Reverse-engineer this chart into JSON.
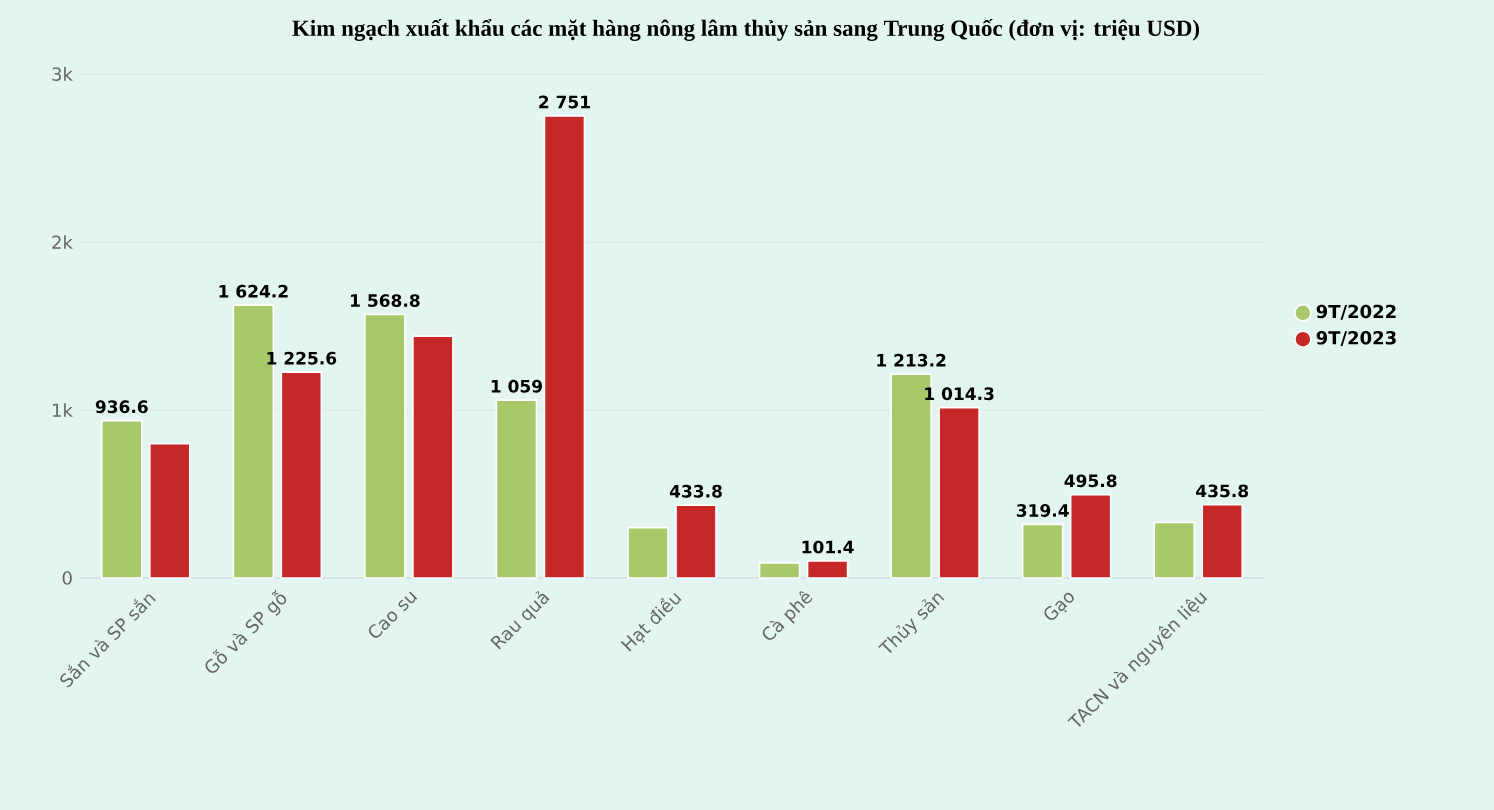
{
  "chart_data": {
    "type": "bar",
    "title": "Kim ngạch xuất khẩu các mặt hàng nông lâm thủy sản sang Trung Quốc (đơn vị: triệu USD)",
    "categories": [
      "Sắn và SP sắn",
      "Gỗ và SP gỗ",
      "Cao su",
      "Rau quả",
      "Hạt điều",
      "Cà phê",
      "Thủy sản",
      "Gạo",
      "TACN và nguyên liệu"
    ],
    "series": [
      {
        "name": "9T/2022",
        "color": "#a7c96a",
        "values": [
          936.6,
          1624.2,
          1568.8,
          1059,
          300,
          90,
          1213.2,
          319.4,
          330
        ],
        "value_labels": [
          "936.6",
          "1 624.2",
          "1 568.8",
          "1 059",
          null,
          null,
          "1 213.2",
          "319.4",
          null
        ]
      },
      {
        "name": "9T/2023",
        "color": "#c62828",
        "values": [
          800,
          1225.6,
          1440,
          2751,
          433.8,
          101.4,
          1014.3,
          495.8,
          435.8
        ],
        "value_labels": [
          null,
          "1 225.6",
          null,
          "2 751",
          "433.8",
          "101.4",
          "1 014.3",
          "495.8",
          "435.8"
        ]
      }
    ],
    "ylim": [
      0,
      3000
    ],
    "yticks": [
      {
        "value": 0,
        "label": "0"
      },
      {
        "value": 1000,
        "label": "1k"
      },
      {
        "value": 2000,
        "label": "2k"
      },
      {
        "value": 3000,
        "label": "3k"
      }
    ],
    "grid": "y",
    "legend": "right"
  }
}
